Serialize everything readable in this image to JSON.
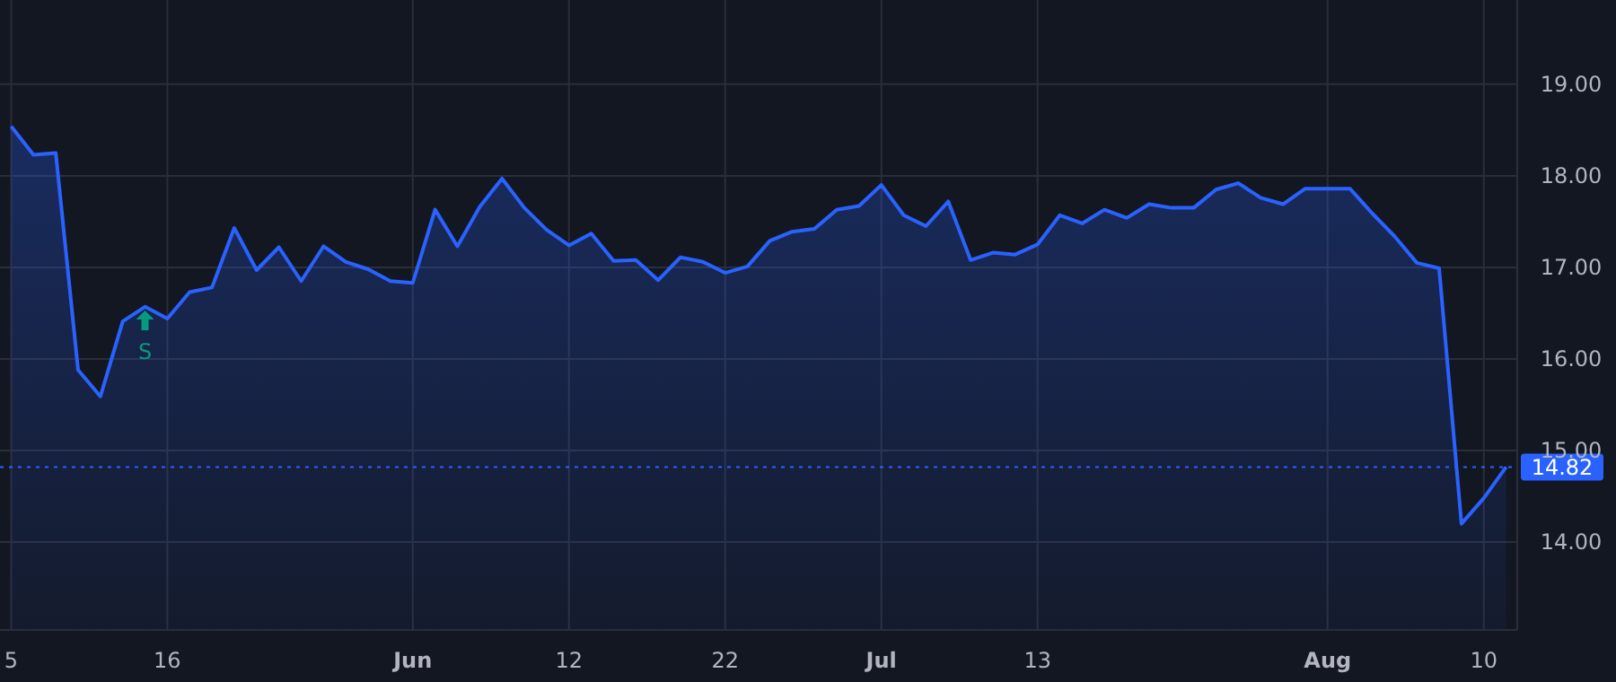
{
  "chart_data": {
    "type": "area",
    "categories": [
      "5",
      null,
      null,
      null,
      null,
      null,
      null,
      "16",
      null,
      null,
      null,
      null,
      null,
      null,
      null,
      null,
      null,
      null,
      "Jun",
      null,
      null,
      null,
      null,
      null,
      null,
      "12",
      null,
      null,
      null,
      null,
      null,
      null,
      "22",
      null,
      null,
      null,
      null,
      null,
      null,
      "Jul",
      null,
      null,
      null,
      null,
      null,
      null,
      "13",
      null,
      null,
      null,
      null,
      null,
      null,
      null,
      null,
      null,
      null,
      null,
      null,
      "Aug",
      null,
      null,
      null,
      null,
      null,
      null,
      "10",
      null
    ],
    "series": [
      {
        "color": "#2962ff",
        "values": [
          18.54,
          18.23,
          18.25,
          15.88,
          15.59,
          16.41,
          16.57,
          16.44,
          16.73,
          16.78,
          17.43,
          16.97,
          17.22,
          16.85,
          17.23,
          17.06,
          16.98,
          16.85,
          16.83,
          17.63,
          17.23,
          17.66,
          17.97,
          17.65,
          17.41,
          17.24,
          17.37,
          17.07,
          17.08,
          16.86,
          17.11,
          17.06,
          16.94,
          17.01,
          17.29,
          17.39,
          17.42,
          17.63,
          17.67,
          17.9,
          17.57,
          17.45,
          17.72,
          17.08,
          17.16,
          17.14,
          17.25,
          17.57,
          17.48,
          17.63,
          17.54,
          17.69,
          17.65,
          17.65,
          17.85,
          17.92,
          17.76,
          17.69,
          17.86,
          17.86,
          17.86,
          17.59,
          17.34,
          17.05,
          16.99,
          14.2,
          14.48,
          14.82
        ]
      }
    ],
    "ylim": [
      13.04,
      19.92
    ],
    "yticks": [
      {
        "value": 14,
        "label": "14.00"
      },
      {
        "value": 15,
        "label": "15.00"
      },
      {
        "value": 16,
        "label": "16.00"
      },
      {
        "value": 17,
        "label": "17.00"
      },
      {
        "value": 18,
        "label": "18.00"
      },
      {
        "value": 19,
        "label": "19.00"
      }
    ],
    "grid": true,
    "line_style": "solid",
    "ref_lines": [
      {
        "axis": "y",
        "value": 14.82,
        "label": "14.82",
        "color": "#2962ff",
        "line_style": "dotted"
      }
    ],
    "annotations": [
      "S"
    ]
  }
}
